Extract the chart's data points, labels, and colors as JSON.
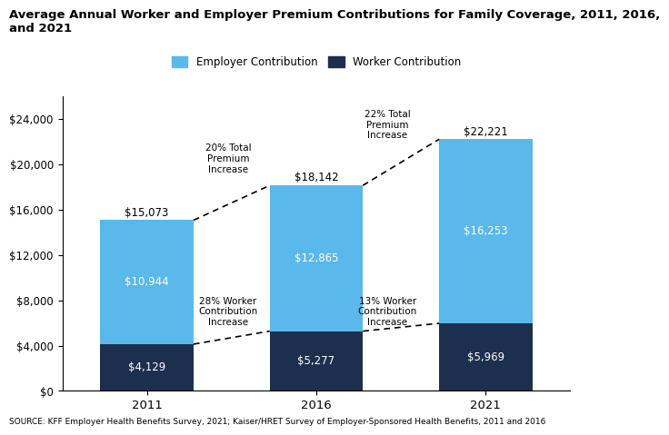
{
  "title_line1": "Average Annual Worker and Employer Premium Contributions for Family Coverage, 2011, 2016,",
  "title_line2": "and 2021",
  "years": [
    "2011",
    "2016",
    "2021"
  ],
  "worker_values": [
    4129,
    5277,
    5969
  ],
  "employer_values": [
    10944,
    12865,
    16253
  ],
  "totals": [
    15073,
    18142,
    22221
  ],
  "worker_labels": [
    "$4,129",
    "$5,277",
    "$5,969"
  ],
  "employer_labels": [
    "$10,944",
    "$12,865",
    "$16,253"
  ],
  "total_labels": [
    "$15,073",
    "$18,142",
    "$22,221"
  ],
  "worker_color": "#1c2f4e",
  "employer_color": "#5bb8ea",
  "ylim": [
    0,
    26000
  ],
  "yticks": [
    0,
    4000,
    8000,
    12000,
    16000,
    20000,
    24000
  ],
  "ytick_labels": [
    "$0",
    "$4,000",
    "$8,000",
    "$12,000",
    "$16,000",
    "$20,000",
    "$24,000"
  ],
  "source_text": "SOURCE: KFF Employer Health Benefits Survey, 2021; Kaiser/HRET Survey of Employer-Sponsored Health Benefits, 2011 and 2016",
  "annotation_total_1": "20% Total\nPremium\nIncrease",
  "annotation_total_2": "22% Total\nPremium\nIncrease",
  "annotation_worker_1": "28% Worker\nContribution\nIncrease",
  "annotation_worker_2": "13% Worker\nContribution\nIncrease",
  "bar_width": 0.55,
  "x_positions": [
    0,
    1,
    2
  ],
  "xlim": [
    -0.5,
    2.5
  ]
}
